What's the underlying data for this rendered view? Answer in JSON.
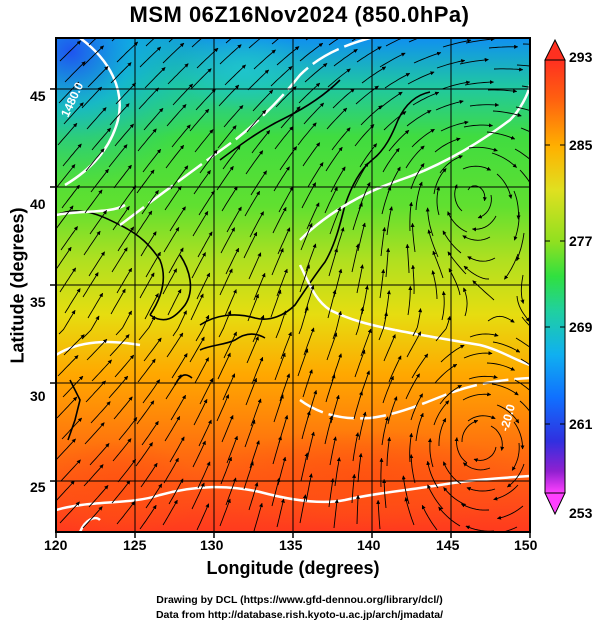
{
  "title": "MSM 06Z16Nov2024 (850.0hPa)",
  "xlabel": "Longitude (degrees)",
  "ylabel": "Latitude  (degrees)",
  "x_ticks": [
    "120",
    "125",
    "130",
    "135",
    "140",
    "145",
    "150"
  ],
  "y_ticks": [
    "25",
    "30",
    "35",
    "40",
    "45"
  ],
  "colorbar": {
    "ticks": [
      "293",
      "285",
      "277",
      "269",
      "261",
      "253"
    ],
    "range": [
      253,
      293
    ],
    "colors": [
      "#ff40ff",
      "#a020d0",
      "#3030e0",
      "#1080ff",
      "#10c0e0",
      "#20d080",
      "#40e040",
      "#a0e020",
      "#e0e020",
      "#ffb000",
      "#ff6010",
      "#ff3020"
    ]
  },
  "contour_labels": [
    "1480.0",
    "-20.0"
  ],
  "credits": {
    "line1": "Drawing by DCL (https://www.gfd-dennou.org/library/dcl/)",
    "line2": "Data from http://database.rish.kyoto-u.ac.jp/arch/jmadata/"
  },
  "map_extent": {
    "lon": [
      120,
      150
    ],
    "lat": [
      22.4,
      47.6
    ]
  }
}
